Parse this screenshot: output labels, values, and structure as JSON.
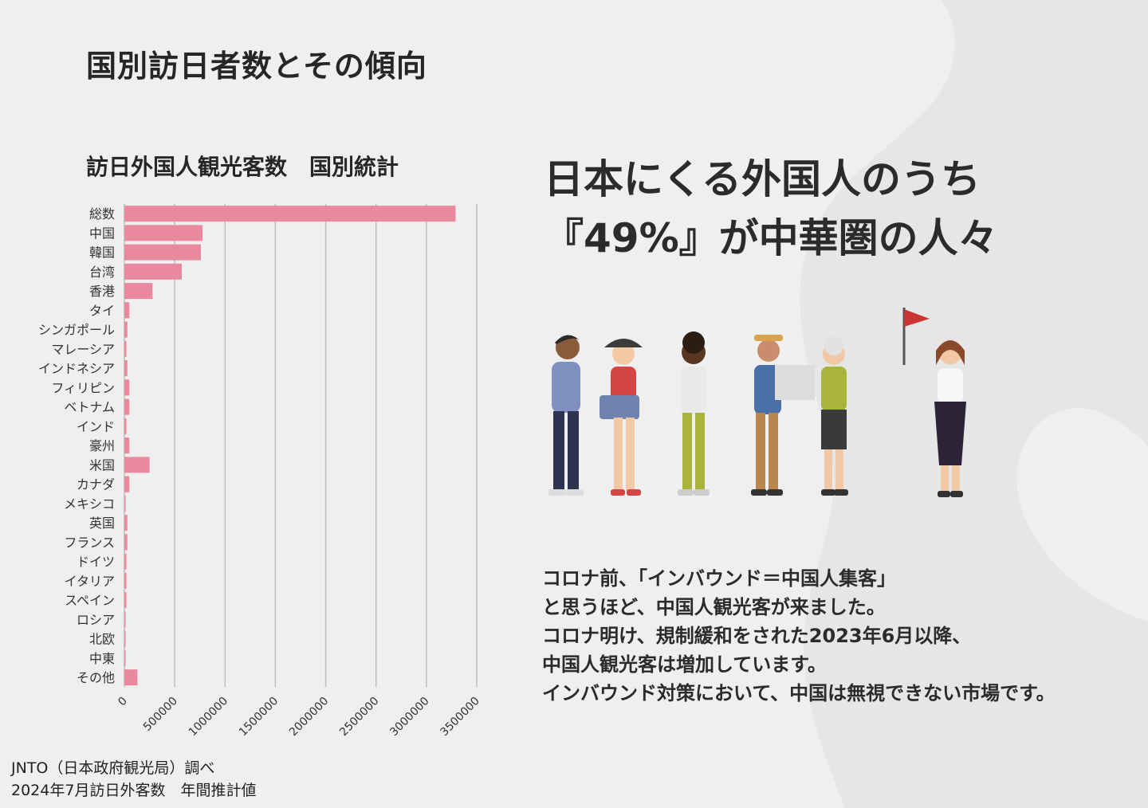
{
  "page": {
    "title": "国別訪日者数とその傾向",
    "accent_color": "#e8899e"
  },
  "chart_data": {
    "type": "bar",
    "orientation": "horizontal",
    "title": "訪日外国人観光客数　国別統計",
    "categories": [
      "総数",
      "中国",
      "韓国",
      "台湾",
      "香港",
      "タイ",
      "シンガポール",
      "マレーシア",
      "インドネシア",
      "フィリピン",
      "ベトナム",
      "インド",
      "豪州",
      "米国",
      "カナダ",
      "メキシコ",
      "英国",
      "フランス",
      "ドイツ",
      "イタリア",
      "スペイン",
      "ロシア",
      "北欧",
      "中東",
      "その他"
    ],
    "values": [
      3290000,
      777000,
      760000,
      570000,
      280000,
      50000,
      30000,
      20000,
      30000,
      50000,
      50000,
      20000,
      50000,
      250000,
      50000,
      10000,
      30000,
      30000,
      20000,
      20000,
      20000,
      5000,
      10000,
      10000,
      130000
    ],
    "x_ticks": [
      "0",
      "500000",
      "1000000",
      "1500000",
      "2000000",
      "2500000",
      "3000000",
      "3500000"
    ],
    "xlim": [
      0,
      3500000
    ],
    "grid": "vertical",
    "bar_color": "#e8899e"
  },
  "headline": {
    "line1": "日本にくる外国人のうち",
    "line2": "『49%』が中華圏の人々"
  },
  "body": {
    "lines": [
      "コロナ前、「インバウンド＝中国人集客」",
      "と思うほど、中国人観光客が来ました。",
      "コロナ明け、規制緩和をされた2023年6月以降、",
      "中国人観光客は増加しています。",
      "インバウンド対策において、中国は無視できない市場です。"
    ]
  },
  "source": {
    "line1": "JNTO（日本政府観光局）調べ",
    "line2": "2024年7月訪日外客数　年間推計値"
  }
}
